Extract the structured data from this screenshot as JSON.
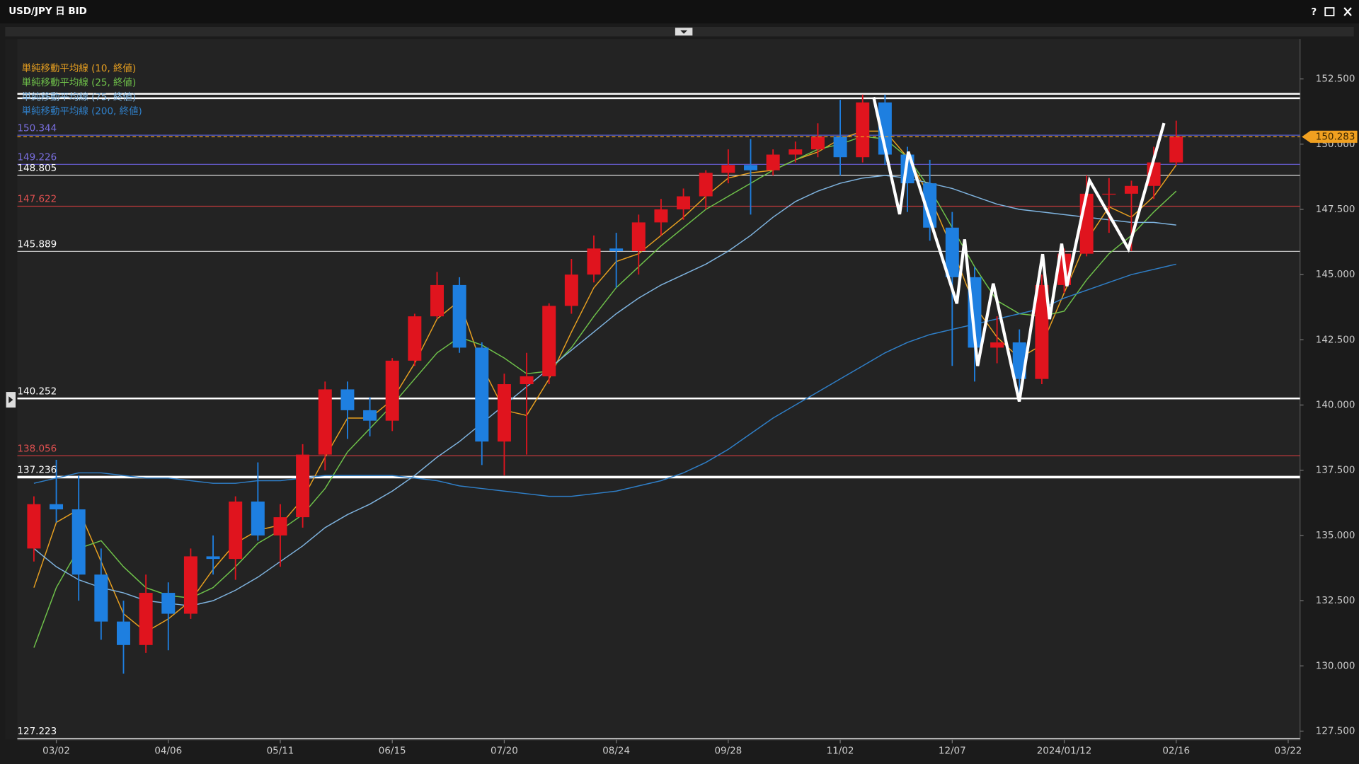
{
  "window": {
    "title": "USD/JPY 日 BID",
    "help": "?"
  },
  "chart_data": {
    "type": "candlestick",
    "up_color": "#e0141e",
    "down_color": "#1e7fe0",
    "open": [
      134.5,
      136.2,
      136.0,
      133.5,
      131.7,
      130.8,
      132.8,
      132.0,
      134.2,
      134.1,
      136.3,
      135.0,
      135.7,
      138.1,
      140.6,
      139.8,
      139.4,
      141.7,
      143.4,
      144.6,
      142.2,
      138.6,
      140.8,
      141.1,
      143.8,
      145.0,
      146.0,
      145.9,
      147.0,
      147.5,
      148.0,
      148.9,
      149.2,
      149.0,
      149.6,
      149.8,
      150.3,
      149.5,
      151.6,
      149.6,
      148.5,
      146.8,
      144.9,
      142.2,
      142.4,
      141.0,
      144.6,
      145.8,
      148.1,
      148.1,
      148.4,
      149.3
    ],
    "high": [
      136.5,
      137.9,
      137.3,
      134.5,
      132.5,
      133.5,
      133.2,
      134.5,
      135.0,
      136.5,
      137.8,
      136.2,
      138.5,
      140.9,
      140.9,
      140.3,
      141.8,
      143.5,
      145.1,
      144.9,
      142.4,
      141.2,
      142.0,
      143.9,
      145.6,
      146.5,
      146.6,
      147.3,
      147.9,
      148.3,
      149.0,
      149.8,
      150.2,
      149.8,
      150.1,
      150.8,
      151.7,
      151.9,
      151.9,
      149.9,
      149.4,
      147.4,
      145.3,
      143.4,
      142.9,
      145.0,
      146.0,
      148.8,
      148.7,
      148.6,
      149.9,
      150.9
    ],
    "low": [
      134.0,
      135.5,
      132.5,
      131.0,
      129.7,
      130.5,
      130.6,
      131.8,
      133.5,
      133.3,
      134.8,
      133.8,
      135.3,
      137.5,
      138.7,
      138.8,
      139.0,
      141.5,
      143.3,
      142.0,
      137.7,
      137.3,
      138.1,
      140.8,
      143.5,
      144.7,
      144.5,
      145.0,
      146.5,
      147.1,
      147.5,
      148.5,
      147.3,
      148.8,
      149.3,
      149.5,
      148.8,
      149.3,
      149.2,
      147.4,
      146.3,
      141.5,
      140.9,
      141.6,
      140.2,
      140.8,
      144.3,
      145.7,
      146.6,
      145.9,
      147.9,
      149.2
    ],
    "close": [
      136.2,
      136.0,
      133.5,
      131.7,
      130.8,
      132.8,
      132.0,
      134.2,
      134.1,
      136.3,
      135.0,
      135.7,
      138.1,
      140.6,
      139.8,
      139.4,
      141.7,
      143.4,
      144.6,
      142.2,
      138.6,
      140.8,
      141.1,
      143.8,
      145.0,
      146.0,
      145.9,
      147.0,
      147.5,
      148.0,
      148.9,
      149.2,
      149.0,
      149.6,
      149.8,
      150.3,
      149.5,
      151.6,
      149.6,
      148.5,
      146.8,
      144.9,
      142.2,
      142.4,
      141.0,
      144.6,
      145.8,
      148.1,
      148.1,
      148.4,
      149.3,
      150.3
    ],
    "xlim": [
      -0.74,
      56.53
    ],
    "xticks": [
      {
        "value": 1,
        "label": "03/02"
      },
      {
        "value": 6,
        "label": "04/06"
      },
      {
        "value": 11,
        "label": "05/11"
      },
      {
        "value": 16,
        "label": "06/15"
      },
      {
        "value": 21,
        "label": "07/20"
      },
      {
        "value": 26,
        "label": "08/24"
      },
      {
        "value": 31,
        "label": "09/28"
      },
      {
        "value": 36,
        "label": "11/02"
      },
      {
        "value": 41,
        "label": "12/07"
      },
      {
        "value": 46,
        "label": "2024/01/12"
      },
      {
        "value": 51,
        "label": "02/16"
      },
      {
        "value": 56,
        "label": "03/22"
      }
    ],
    "ylim": [
      127.17,
      154.03
    ],
    "yticks": [
      {
        "value": 127.5,
        "label": "127.500"
      },
      {
        "value": 130,
        "label": "130.000"
      },
      {
        "value": 132.5,
        "label": "132.500"
      },
      {
        "value": 135,
        "label": "135.000"
      },
      {
        "value": 137.5,
        "label": "137.500"
      },
      {
        "value": 140,
        "label": "140.000"
      },
      {
        "value": 142.5,
        "label": "142.500"
      },
      {
        "value": 145,
        "label": "145.000"
      },
      {
        "value": 147.5,
        "label": "147.500"
      },
      {
        "value": 150,
        "label": "150.000"
      },
      {
        "value": 152.5,
        "label": "152.500"
      }
    ],
    "moving_averages": [
      {
        "name": "単純移動平均線 (10, 終値)",
        "color": "#e8a020",
        "values": [
          133.0,
          135.5,
          136.0,
          134.0,
          132.0,
          131.3,
          131.8,
          132.5,
          133.7,
          134.7,
          135.2,
          135.4,
          136.4,
          138.0,
          139.5,
          139.5,
          140.2,
          141.6,
          143.3,
          144.0,
          141.5,
          139.8,
          139.6,
          141.0,
          142.8,
          144.5,
          145.5,
          145.8,
          146.5,
          147.2,
          148.0,
          148.7,
          148.9,
          149.0,
          149.4,
          149.7,
          150.2,
          150.5,
          150.5,
          149.5,
          148.0,
          146.0,
          143.8,
          142.6,
          141.8,
          142.3,
          144.3,
          146.3,
          147.6,
          147.2,
          148.0,
          149.2
        ]
      },
      {
        "name": "単純移動平均線 (25, 終値)",
        "color": "#6fc24a",
        "values": [
          130.7,
          133.0,
          134.5,
          134.8,
          133.8,
          133.0,
          132.7,
          132.6,
          133.0,
          133.8,
          134.7,
          135.2,
          135.8,
          136.8,
          138.2,
          139.1,
          140.0,
          141.0,
          142.0,
          142.6,
          142.3,
          141.8,
          141.2,
          141.3,
          142.2,
          143.4,
          144.5,
          145.3,
          146.1,
          146.8,
          147.5,
          148.0,
          148.5,
          149.0,
          149.4,
          149.8,
          150.0,
          150.3,
          150.2,
          149.5,
          148.3,
          146.8,
          145.3,
          144.0,
          143.5,
          143.4,
          143.6,
          144.8,
          145.8,
          146.5,
          147.4,
          148.2
        ]
      },
      {
        "name": "単純移動平均線 (75, 終値)",
        "color": "#7fb4e0",
        "values": [
          134.5,
          133.8,
          133.3,
          133.0,
          132.8,
          132.5,
          132.4,
          132.3,
          132.5,
          132.9,
          133.4,
          134.0,
          134.6,
          135.3,
          135.8,
          136.2,
          136.7,
          137.3,
          138.0,
          138.6,
          139.3,
          140.0,
          140.7,
          141.4,
          142.1,
          142.8,
          143.5,
          144.1,
          144.6,
          145.0,
          145.4,
          145.9,
          146.5,
          147.2,
          147.8,
          148.2,
          148.5,
          148.7,
          148.8,
          148.7,
          148.5,
          148.3,
          148.0,
          147.7,
          147.5,
          147.4,
          147.3,
          147.2,
          147.1,
          147.0,
          147.0,
          146.9
        ]
      },
      {
        "name": "単純移動平均線 (200, 終値)",
        "color": "#2f7fc8",
        "values": [
          137.0,
          137.2,
          137.4,
          137.4,
          137.3,
          137.2,
          137.2,
          137.1,
          137.0,
          137.0,
          137.1,
          137.1,
          137.2,
          137.3,
          137.3,
          137.3,
          137.3,
          137.2,
          137.1,
          136.9,
          136.8,
          136.7,
          136.6,
          136.5,
          136.5,
          136.6,
          136.7,
          136.9,
          137.1,
          137.4,
          137.8,
          138.3,
          138.9,
          139.5,
          140.0,
          140.5,
          141.0,
          141.5,
          142.0,
          142.4,
          142.7,
          142.9,
          143.1,
          143.3,
          143.5,
          143.7,
          144.1,
          144.4,
          144.7,
          145.0,
          145.2,
          145.4
        ]
      }
    ],
    "levels": [
      {
        "value": 151.93,
        "color": "#ffffff",
        "width": 2
      },
      {
        "value": 151.76,
        "color": "#ffffff",
        "width": 2
      },
      {
        "value": 150.344,
        "color": "#5a5fd0",
        "width": 1,
        "label_color": "#7a6fe0"
      },
      {
        "value": 149.226,
        "color": "#6a5fd8",
        "width": 1,
        "label_color": "#7a6fe0"
      },
      {
        "value": 148.805,
        "color": "#d9d9d9",
        "width": 1,
        "label_color": "#ffffff"
      },
      {
        "value": 147.622,
        "color": "#c0393b",
        "width": 1,
        "label_color": "#e05050"
      },
      {
        "value": 145.889,
        "color": "#bfbfbf",
        "width": 1,
        "label_color": "#ffffff"
      },
      {
        "value": 140.252,
        "color": "#ffffff",
        "width": 2,
        "label_color": "#ffffff"
      },
      {
        "value": 138.056,
        "color": "#c0393b",
        "width": 1,
        "label_color": "#e05050"
      },
      {
        "value": 137.236,
        "color": "#ffffff",
        "width": 3,
        "label_color": "#ffffff"
      },
      {
        "value": 127.223,
        "color": "#ffffff",
        "width": 1,
        "label_color": "#ffffff"
      }
    ],
    "last_price": {
      "value": 150.283,
      "color": "#f0a020"
    }
  }
}
